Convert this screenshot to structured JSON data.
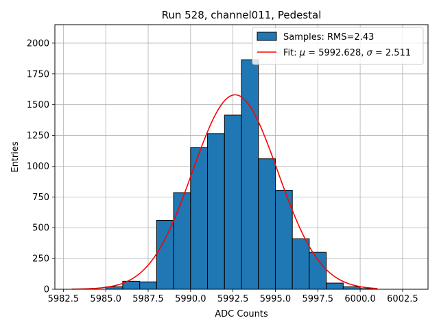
{
  "chart_data": {
    "type": "bar",
    "title": "Run 528, channel011, Pedestal",
    "xlabel": "ADC Counts",
    "ylabel": "Entries",
    "xlim": [
      5982.0,
      6004.0
    ],
    "ylim": [
      0,
      2150
    ],
    "xticks": [
      5982.5,
      5985.0,
      5987.5,
      5990.0,
      5992.5,
      5995.0,
      5997.5,
      6000.0,
      6002.5
    ],
    "xtick_labels": [
      "5982.5",
      "5985.0",
      "5987.5",
      "5990.0",
      "5992.5",
      "5995.0",
      "5997.5",
      "6000.0",
      "6002.5"
    ],
    "yticks": [
      0,
      250,
      500,
      750,
      1000,
      1250,
      1500,
      1750,
      2000
    ],
    "ytick_labels": [
      "0",
      "250",
      "500",
      "750",
      "1000",
      "1250",
      "1500",
      "1750",
      "2000"
    ],
    "grid": true,
    "legend_position": "upper-right",
    "histogram": {
      "name": "Samples: RMS=2.43",
      "color": "#1f77b4",
      "edge_color": "#000000",
      "bin_edges": [
        5985,
        5986,
        5987,
        5988,
        5989,
        5990,
        5991,
        5992,
        5993,
        5994,
        5995,
        5996,
        5997,
        5998,
        5999,
        6000,
        6001
      ],
      "counts": [
        20,
        65,
        60,
        560,
        785,
        1150,
        1265,
        1415,
        1865,
        1060,
        805,
        410,
        300,
        50,
        20,
        5
      ]
    },
    "fit": {
      "name": "Fit: μ = 5992.628, σ = 2.511",
      "legend_parts": [
        "Fit: ",
        "μ",
        " = 5992.628, ",
        "σ",
        " = 2.511"
      ],
      "color": "#ff0000",
      "mu": 5992.628,
      "sigma": 2.511,
      "peak": 1580,
      "x_range": [
        5983.0,
        6001.0
      ]
    }
  }
}
